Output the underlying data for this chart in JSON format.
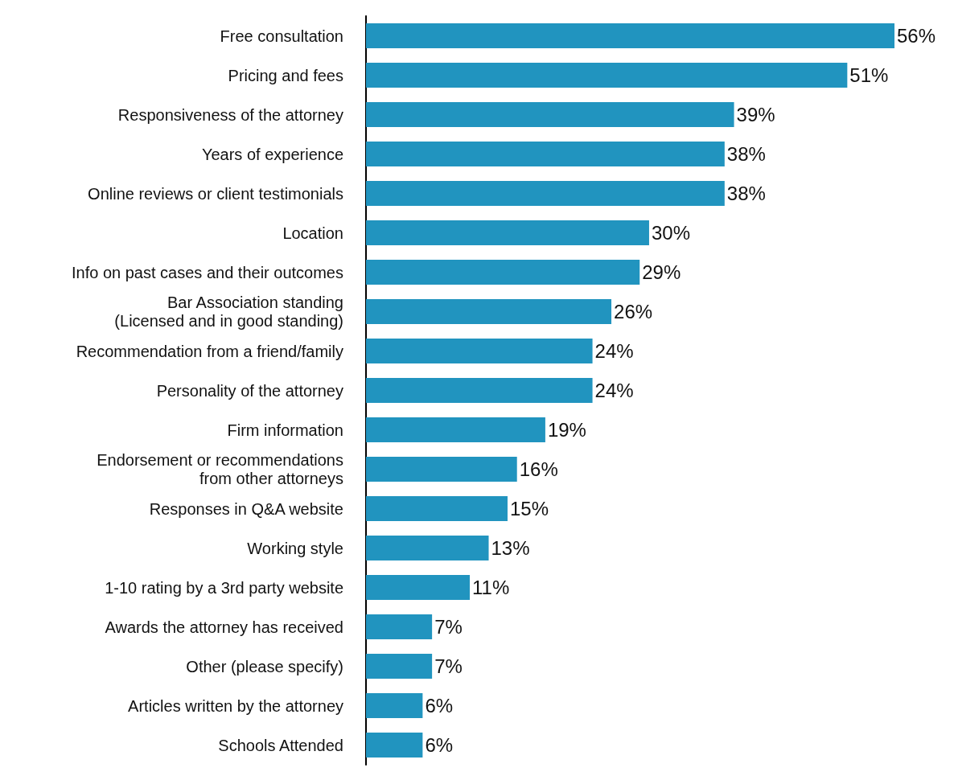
{
  "chart_data": {
    "type": "bar",
    "orientation": "horizontal",
    "color": "#2194bf",
    "categories": [
      "Free consultation",
      "Pricing and fees",
      "Responsiveness of the attorney",
      "Years of experience",
      "Online reviews or client testimonials",
      "Location",
      "Info on past cases and their outcomes",
      "Bar Association standing\n(Licensed and in good standing)",
      "Recommendation from a friend/family",
      "Personality of the attorney",
      "Firm information",
      "Endorsement or recommendations\nfrom other attorneys",
      "Responses in Q&A website",
      "Working style",
      "1-10 rating by a 3rd party website",
      "Awards the attorney has received",
      "Other (please specify)",
      "Articles written by the attorney",
      "Schools Attended"
    ],
    "values": [
      56,
      51,
      39,
      38,
      38,
      30,
      29,
      26,
      24,
      24,
      19,
      16,
      15,
      13,
      11,
      7,
      7,
      6,
      6
    ],
    "value_labels": [
      "56%",
      "51%",
      "39%",
      "38%",
      "38%",
      "30%",
      "29%",
      "26%",
      "24%",
      "24%",
      "19%",
      "16%",
      "15%",
      "13%",
      "11%",
      "7%",
      "7%",
      "6%",
      "6%"
    ]
  }
}
